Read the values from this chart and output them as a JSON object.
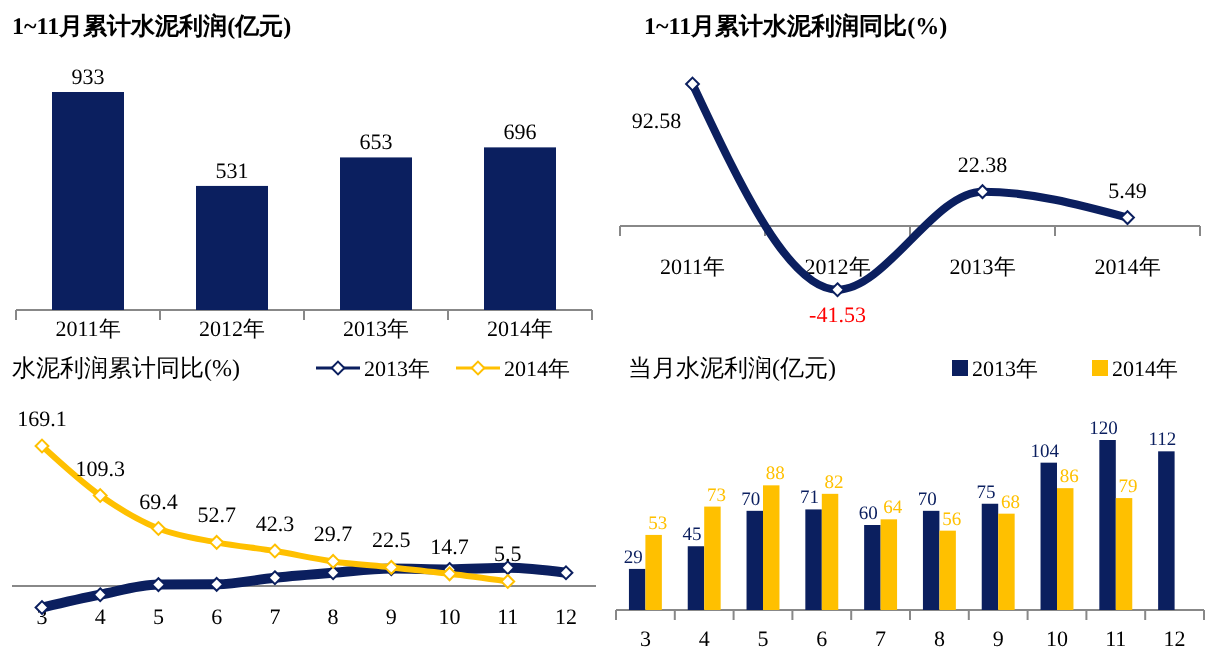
{
  "chart_data": [
    {
      "type": "bar",
      "title": "1~11月累计水泥利润(亿元)",
      "categories": [
        "2011年",
        "2012年",
        "2013年",
        "2014年"
      ],
      "values": [
        933,
        531,
        653,
        696
      ],
      "color": "#0b1f5f",
      "data_labels": true
    },
    {
      "type": "line",
      "title": "1~11月累计水泥利润同比(%)",
      "categories": [
        "2011年",
        "2012年",
        "2013年",
        "2014年"
      ],
      "values": [
        92.58,
        -41.53,
        22.38,
        5.49
      ],
      "color": "#0b1f5f",
      "marker": "diamond",
      "data_labels": true
    },
    {
      "type": "line",
      "title": "水泥利润累计同比(%)",
      "categories": [
        "3",
        "4",
        "5",
        "6",
        "7",
        "8",
        "9",
        "10",
        "11",
        "12"
      ],
      "marker": "diamond",
      "legend": "top right",
      "series": [
        {
          "name": "2013年",
          "color": "#0b1f5f",
          "values": [
            -26,
            -10.5,
            1.7,
            2,
            10,
            16,
            21,
            20,
            22,
            16
          ]
        },
        {
          "name": "2014年",
          "color": "#ffc000",
          "values": [
            169.1,
            109.3,
            69.4,
            52.7,
            42.3,
            29.7,
            22.5,
            14.7,
            5.5,
            null
          ],
          "value_labels": [
            "169.1",
            "109.3",
            "69.4",
            "52.7",
            "42.3",
            "29.7",
            "22.5",
            "14.7",
            "5.5",
            null
          ]
        }
      ]
    },
    {
      "type": "bar",
      "title": "当月水泥利润(亿元)",
      "categories": [
        "3",
        "4",
        "5",
        "6",
        "7",
        "8",
        "9",
        "10",
        "11",
        "12"
      ],
      "legend": "top right",
      "data_labels": true,
      "series": [
        {
          "name": "2013年",
          "color": "#0b1f5f",
          "values": [
            29,
            45,
            70,
            71,
            60,
            70,
            75,
            104,
            120,
            112
          ]
        },
        {
          "name": "2014年",
          "color": "#ffc000",
          "values": [
            53,
            73,
            88,
            82,
            64,
            56,
            68,
            86,
            79,
            null
          ]
        }
      ]
    }
  ]
}
